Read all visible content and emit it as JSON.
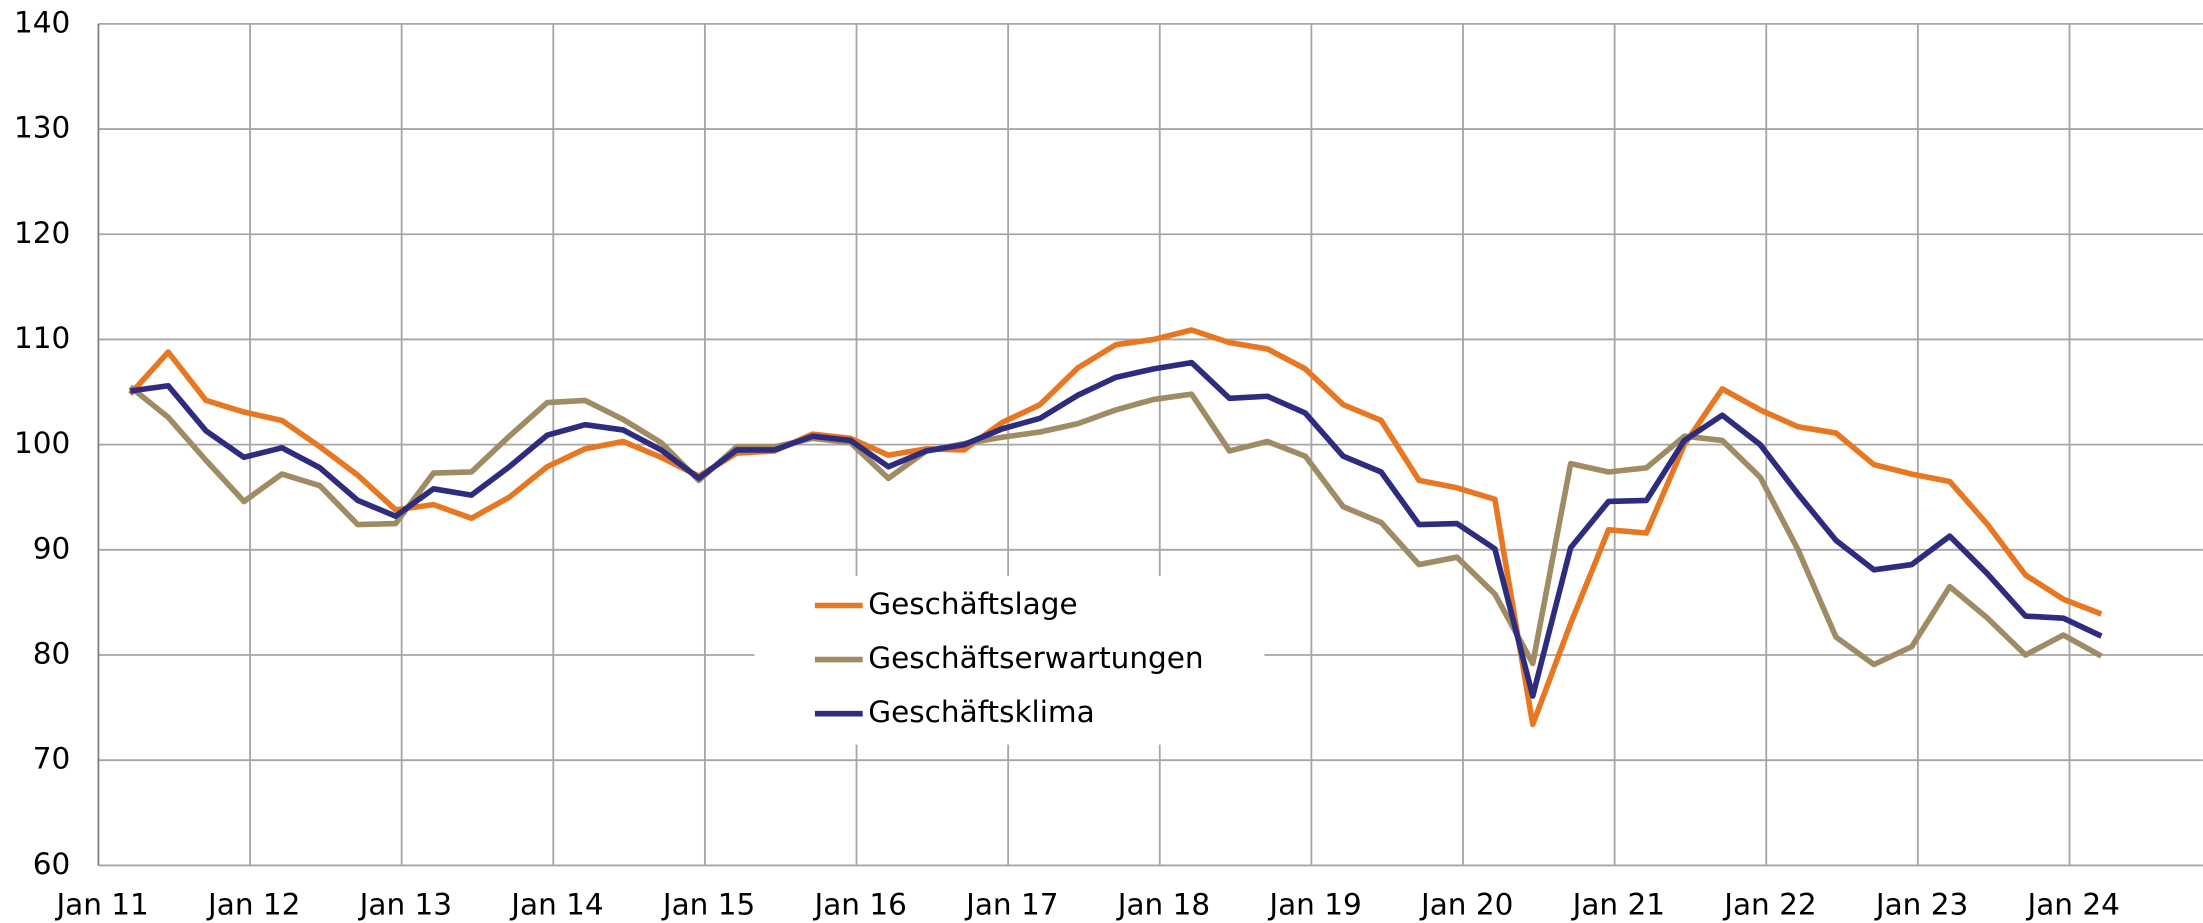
{
  "chart_data": {
    "type": "line",
    "x": [
      2011.21,
      2011.46,
      2011.71,
      2011.96,
      2012.21,
      2012.46,
      2012.71,
      2012.96,
      2013.21,
      2013.46,
      2013.71,
      2013.96,
      2014.21,
      2014.46,
      2014.71,
      2014.96,
      2015.21,
      2015.46,
      2015.71,
      2015.96,
      2016.21,
      2016.46,
      2016.71,
      2016.96,
      2017.21,
      2017.46,
      2017.71,
      2017.96,
      2018.21,
      2018.46,
      2018.71,
      2018.96,
      2019.21,
      2019.46,
      2019.71,
      2019.96,
      2020.21,
      2020.46,
      2020.71,
      2020.96,
      2021.21,
      2021.46,
      2021.71,
      2021.96,
      2022.21,
      2022.46,
      2022.71,
      2022.96,
      2023.21,
      2023.46,
      2023.71,
      2023.96,
      2024.21
    ],
    "series": [
      {
        "name": "Geschäftslage",
        "color": "#e87722",
        "values": [
          104.8,
          108.8,
          104.2,
          103.1,
          102.3,
          99.8,
          97.1,
          93.8,
          94.3,
          93.0,
          95.0,
          97.9,
          99.6,
          100.3,
          98.8,
          97.0,
          99.2,
          99.4,
          101.0,
          100.6,
          99.0,
          99.6,
          99.5,
          102.1,
          103.8,
          107.3,
          109.5,
          110.0,
          110.9,
          109.7,
          109.1,
          107.2,
          103.8,
          102.3,
          96.6,
          95.9,
          94.8,
          73.4,
          83.0,
          91.9,
          91.6,
          100.0,
          105.3,
          103.3,
          101.7,
          101.1,
          98.1,
          97.2,
          96.5,
          92.4,
          87.6,
          85.3,
          83.9
        ]
      },
      {
        "name": "Geschäftserwartungen",
        "color": "#a08c64",
        "values": [
          105.5,
          102.6,
          98.5,
          94.6,
          97.2,
          96.1,
          92.4,
          92.5,
          97.3,
          97.4,
          100.8,
          104.0,
          104.2,
          102.4,
          100.2,
          96.6,
          99.8,
          99.8,
          100.6,
          100.2,
          96.8,
          99.4,
          100.1,
          100.7,
          101.2,
          102.0,
          103.3,
          104.3,
          104.8,
          99.4,
          100.3,
          98.9,
          94.1,
          92.6,
          88.6,
          89.3,
          85.8,
          79.2,
          98.2,
          97.4,
          97.8,
          100.8,
          100.4,
          96.9,
          90.0,
          81.7,
          79.1,
          80.8,
          86.5,
          83.5,
          80.0,
          81.9,
          79.9
        ]
      },
      {
        "name": "Geschäftsklima",
        "color": "#2e2c7e",
        "values": [
          105.1,
          105.6,
          101.3,
          98.8,
          99.7,
          97.8,
          94.7,
          93.2,
          95.8,
          95.2,
          97.9,
          100.9,
          101.9,
          101.4,
          99.5,
          96.8,
          99.5,
          99.5,
          100.8,
          100.4,
          97.9,
          99.4,
          100.0,
          101.5,
          102.5,
          104.7,
          106.4,
          107.2,
          107.8,
          104.4,
          104.6,
          103.0,
          98.9,
          97.4,
          92.4,
          92.5,
          90.1,
          76.1,
          90.2,
          94.6,
          94.7,
          100.4,
          102.8,
          100.0,
          95.3,
          90.9,
          88.1,
          88.6,
          91.3,
          87.7,
          83.7,
          83.5,
          81.8
        ]
      }
    ],
    "xlim": [
      2011,
      2024.88
    ],
    "xticks": [
      {
        "value": 2011,
        "label": "Jan 11"
      },
      {
        "value": 2012,
        "label": "Jan 12"
      },
      {
        "value": 2013,
        "label": "Jan 13"
      },
      {
        "value": 2014,
        "label": "Jan 14"
      },
      {
        "value": 2015,
        "label": "Jan 15"
      },
      {
        "value": 2016,
        "label": "Jan 16"
      },
      {
        "value": 2017,
        "label": "Jan 17"
      },
      {
        "value": 2018,
        "label": "Jan 18"
      },
      {
        "value": 2019,
        "label": "Jan 19"
      },
      {
        "value": 2020,
        "label": "Jan 20"
      },
      {
        "value": 2021,
        "label": "Jan 21"
      },
      {
        "value": 2022,
        "label": "Jan 22"
      },
      {
        "value": 2023,
        "label": "Jan 23"
      },
      {
        "value": 2024,
        "label": "Jan 24"
      }
    ],
    "ylim": [
      60,
      140
    ],
    "yticks": [
      60,
      70,
      80,
      90,
      100,
      110,
      120,
      130,
      140
    ],
    "grid": true,
    "legend": "center"
  }
}
